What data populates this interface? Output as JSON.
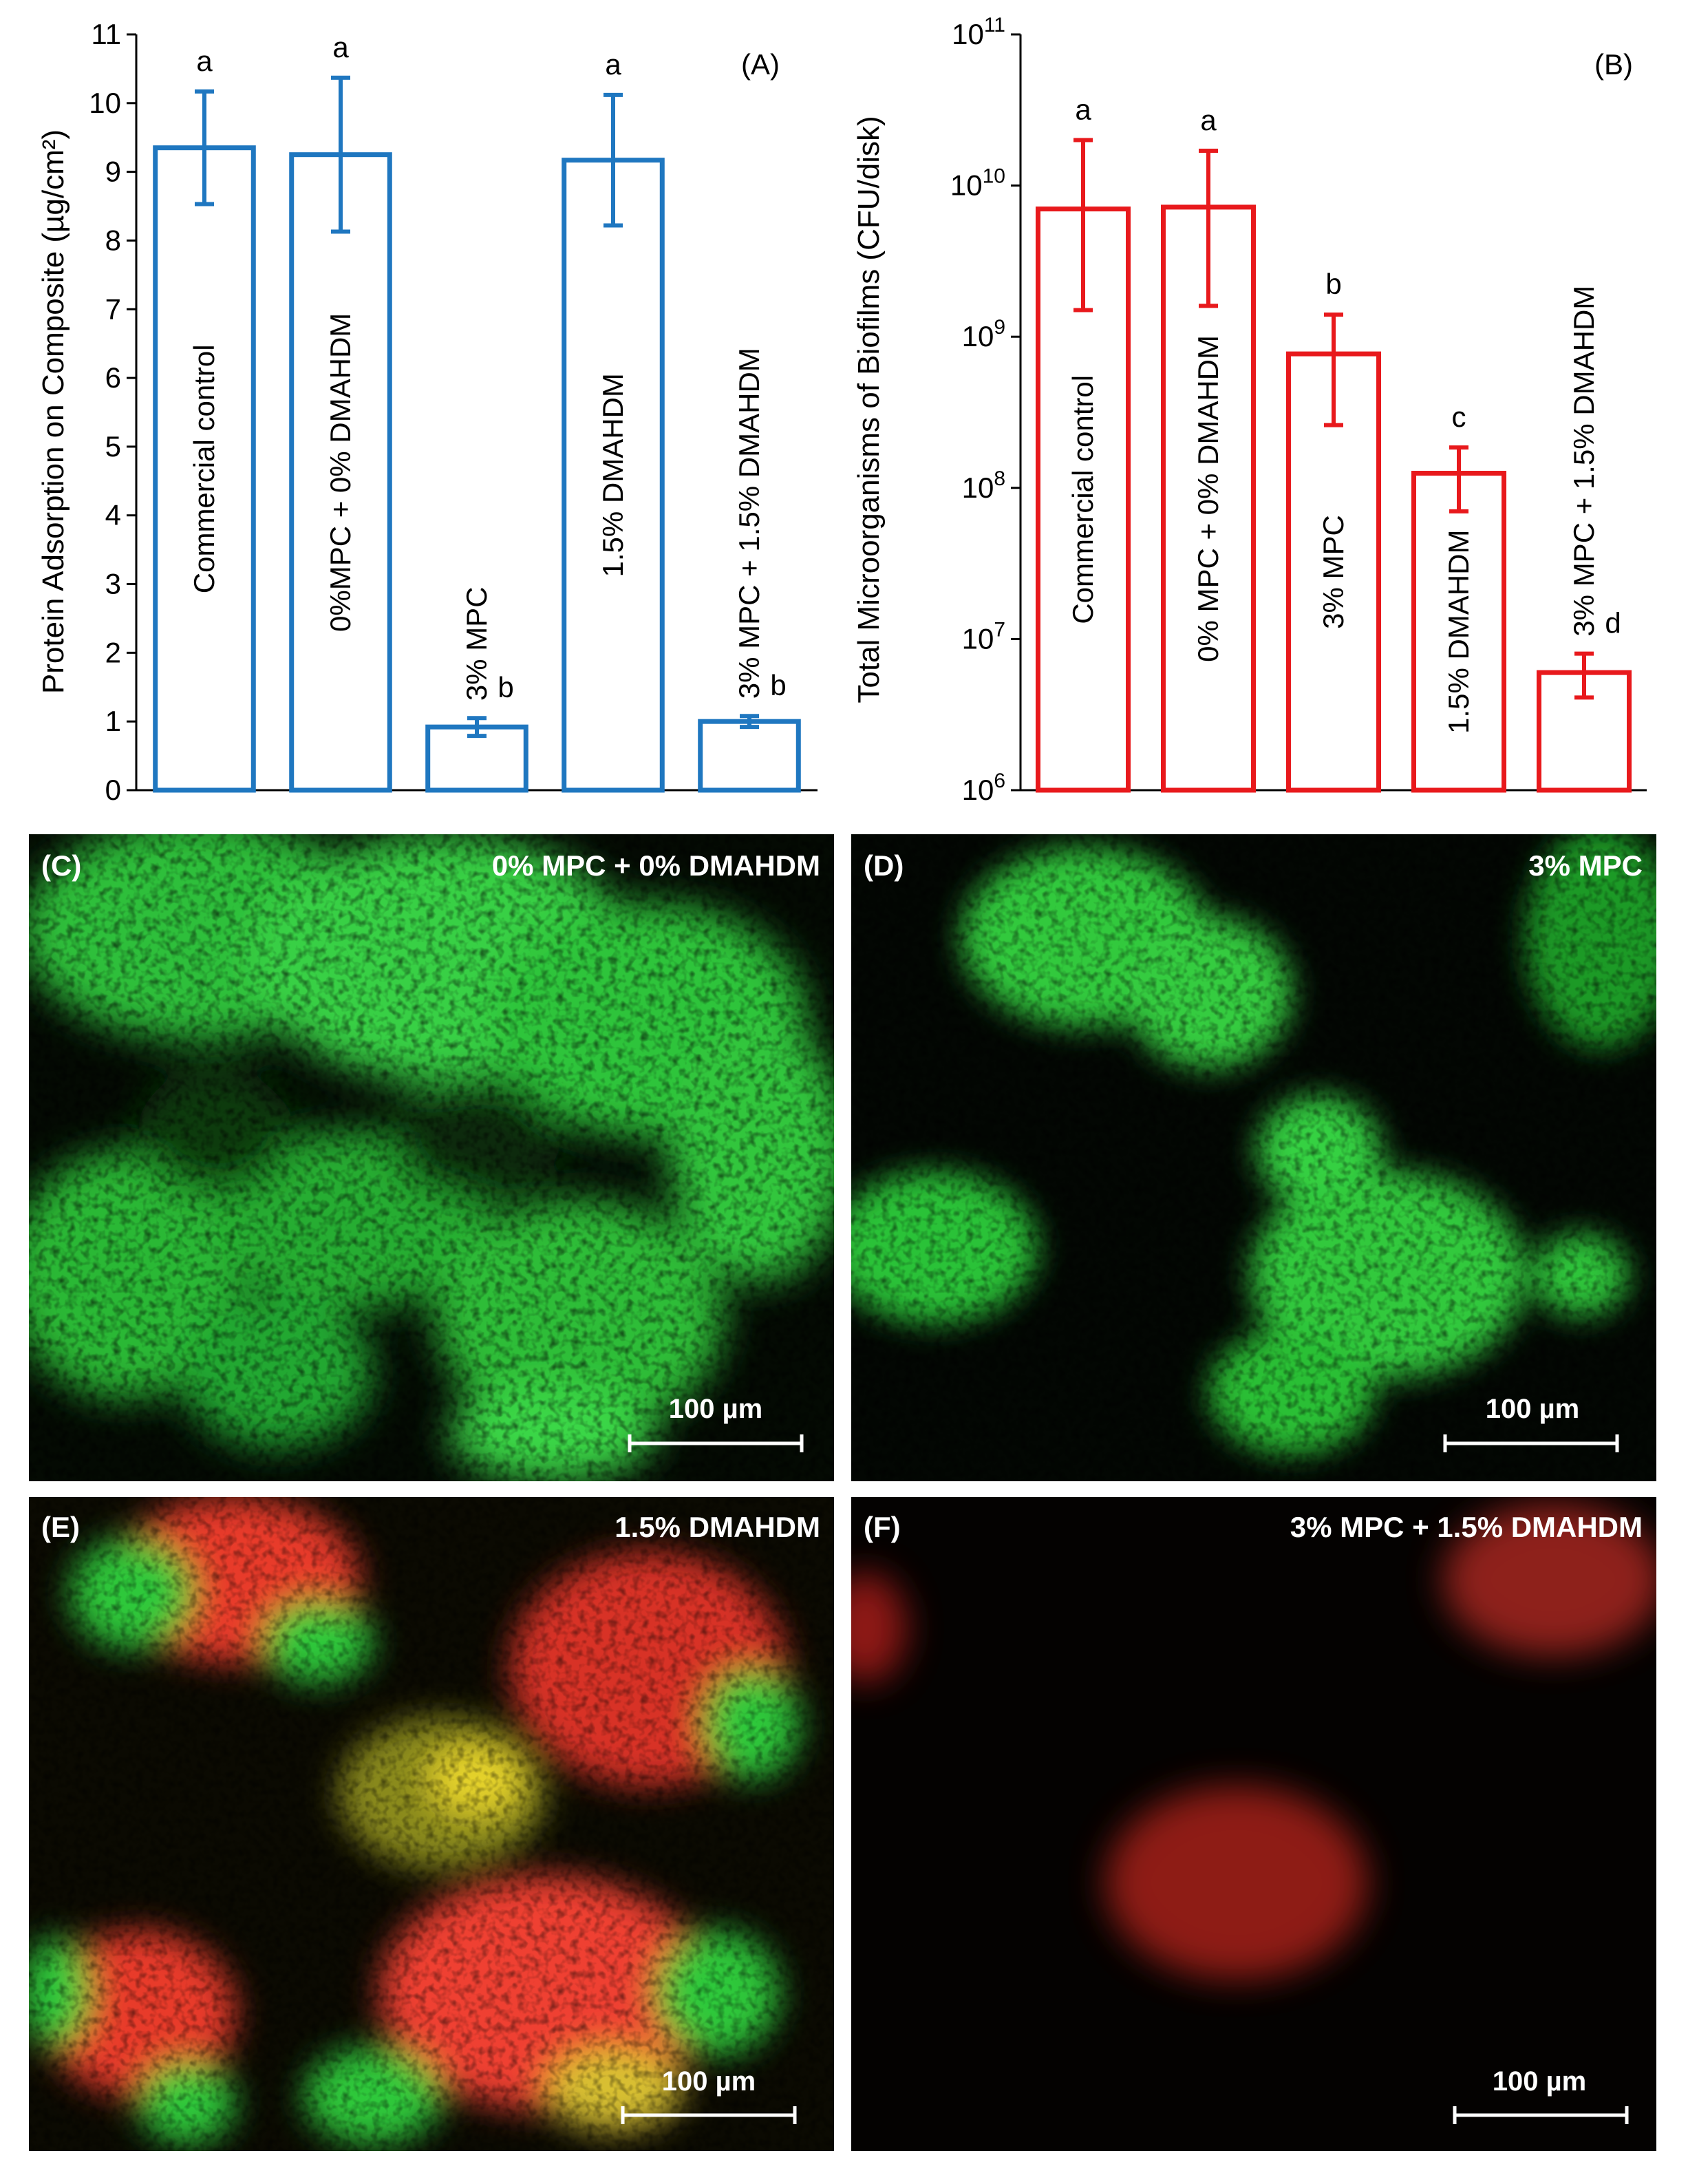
{
  "chart_data": [
    {
      "type": "bar",
      "panel_label": "(A)",
      "ylabel": "Protein Adsorption on Composite (µg/cm²)",
      "ylim": [
        0,
        11
      ],
      "yticks": [
        "0",
        "1",
        "2",
        "3",
        "4",
        "5",
        "6",
        "7",
        "8",
        "9",
        "10",
        "11"
      ],
      "categories": [
        "Commercial control",
        "0%MPC + 0% DMAHDM",
        "3% MPC",
        "1.5% DMAHDM",
        "3% MPC + 1.5% DMAHDM"
      ],
      "values": [
        9.35,
        9.25,
        0.92,
        9.17,
        1.0
      ],
      "errors": [
        0.82,
        1.12,
        0.13,
        0.95,
        0.08
      ],
      "letters": [
        "a",
        "a",
        "b",
        "a",
        "b"
      ],
      "color": "#1f77c0"
    },
    {
      "type": "bar",
      "scale": "log",
      "panel_label": "(B)",
      "ylabel": "Total Microorganisms of Biofilms (CFU/disk)",
      "ylim": [
        1000000,
        100000000000
      ],
      "ytick_base": "10",
      "ytick_exponents": [
        "6",
        "7",
        "8",
        "9",
        "10",
        "11"
      ],
      "categories": [
        "Commercial control",
        "0% MPC + 0% DMAHDM",
        "3% MPC",
        "1.5% DMAHDM",
        "3% MPC + 1.5% DMAHDM"
      ],
      "values": [
        7000000000,
        7200000000,
        770000000,
        125000000,
        6000000
      ],
      "err_low": [
        1500000000,
        1600000000,
        260000000,
        70000000,
        4100000
      ],
      "err_high": [
        20000000000,
        17000000000,
        1400000000,
        185000000,
        8000000
      ],
      "letters": [
        "a",
        "a",
        "b",
        "c",
        "d"
      ],
      "color": "#e8191c"
    }
  ],
  "images": [
    {
      "label": "(C)",
      "title": "0% MPC + 0% DMAHDM",
      "scale_bar": "100 µm",
      "scheme": "green"
    },
    {
      "label": "(D)",
      "title": "3% MPC",
      "scale_bar": "100 µm",
      "scheme": "green-sparse"
    },
    {
      "label": "(E)",
      "title": "1.5% DMAHDM",
      "scale_bar": "100 µm",
      "scheme": "mixed"
    },
    {
      "label": "(F)",
      "title": "3% MPC + 1.5% DMAHDM",
      "scale_bar": "100 µm",
      "scheme": "red-dots"
    }
  ]
}
